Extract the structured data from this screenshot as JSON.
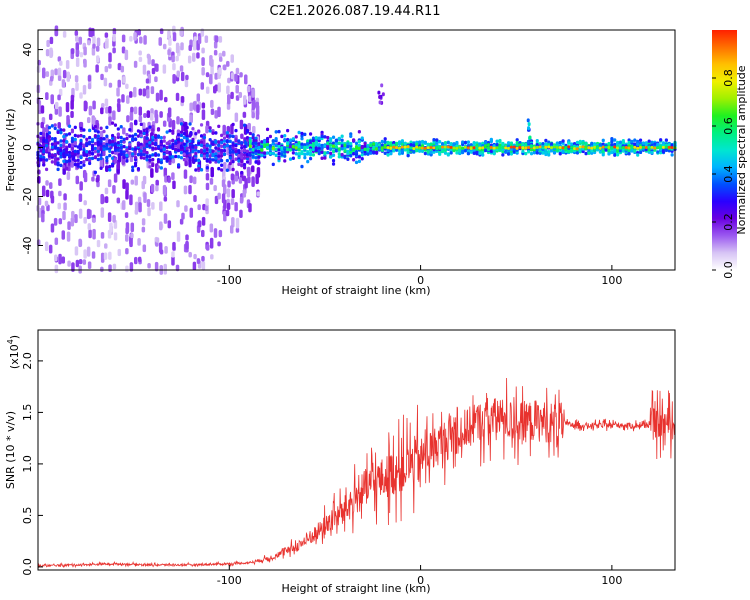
{
  "chart_data": [
    {
      "type": "heatmap",
      "title": "C2E1.2026.087.19.44.R11",
      "xlabel": "Height of straight line (km)",
      "ylabel": "Frequency (Hz)",
      "xlim": [
        -200,
        133
      ],
      "ylim": [
        -50,
        48
      ],
      "xticks": [
        -100,
        0,
        100
      ],
      "yticks": [
        -40,
        -20,
        0,
        20,
        40
      ],
      "colorbar": {
        "label": "Normalized spectral amplitude",
        "range": [
          0,
          1
        ],
        "ticks": [
          "0.0",
          "0.2",
          "0.4",
          "0.6",
          "0.8"
        ],
        "tick_values": [
          0.0,
          0.2,
          0.4,
          0.6,
          0.8
        ],
        "colors": [
          "#ffffff",
          "#d7c4f5",
          "#9b59f0",
          "#6a00e0",
          "#2a00ff",
          "#0050ff",
          "#00b4ff",
          "#00e6d0",
          "#00f080",
          "#20f020",
          "#a0f000",
          "#f0f000",
          "#ffc000",
          "#ff7000",
          "#ff2000"
        ]
      }
    },
    {
      "type": "line",
      "xlabel": "Height of straight line (km)",
      "ylabel": "SNR (10 * v/v)",
      "scale_label": "(x10",
      "scale_exp": "4",
      "xlim": [
        -200,
        133
      ],
      "ylim": [
        -0.03,
        2.3
      ],
      "xticks": [
        -100,
        0,
        100
      ],
      "yticks": [
        "0.0",
        "0.5",
        "1.0",
        "1.5",
        "2.0"
      ],
      "ytick_values": [
        0.0,
        0.5,
        1.0,
        1.5,
        2.0
      ],
      "color": "#e8322e",
      "x": [
        -200,
        -180,
        -160,
        -140,
        -120,
        -100,
        -90,
        -80,
        -70,
        -60,
        -50,
        -40,
        -30,
        -20,
        -10,
        0,
        10,
        20,
        30,
        40,
        50,
        60,
        70,
        80,
        90,
        100,
        110,
        120,
        133
      ],
      "y": [
        0.01,
        0.02,
        0.03,
        0.02,
        0.02,
        0.03,
        0.04,
        0.08,
        0.15,
        0.25,
        0.4,
        0.55,
        0.75,
        0.85,
        0.95,
        1.05,
        1.2,
        1.3,
        1.4,
        1.45,
        1.4,
        1.42,
        1.4,
        1.38,
        1.37,
        1.38,
        1.37,
        1.38,
        1.4
      ]
    }
  ]
}
